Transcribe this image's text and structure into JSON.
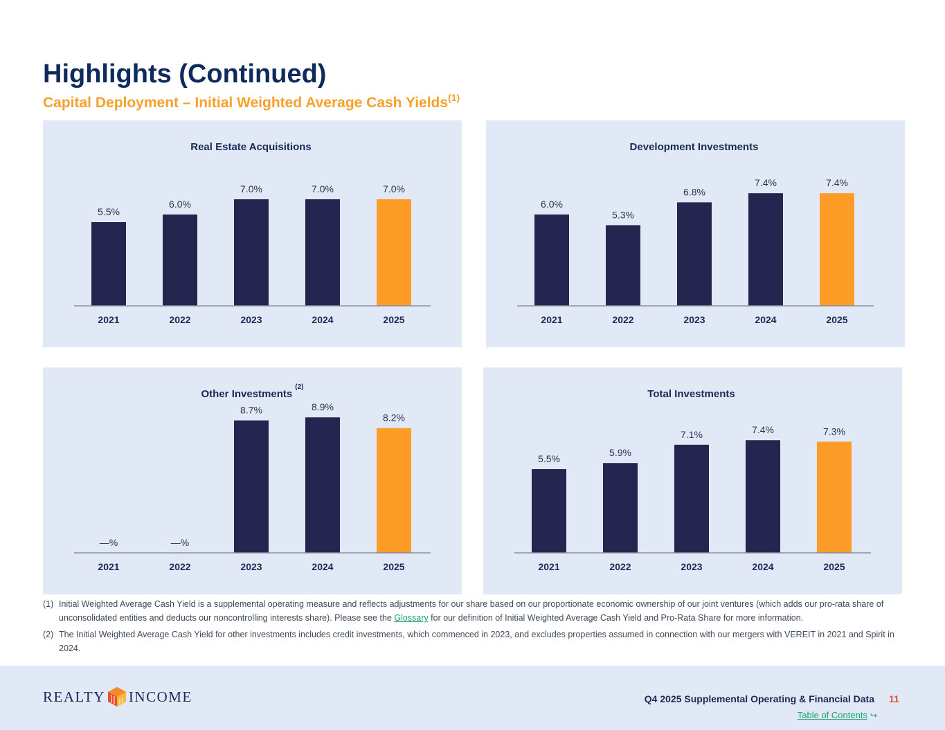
{
  "page": {
    "title": "Highlights (Continued)",
    "subtitle": "Capital Deployment – Initial Weighted Average Cash Yields",
    "subtitle_sup": "(1)"
  },
  "colors": {
    "bar_dark": "#252650",
    "bar_highlight": "#fd9c27",
    "panel_bg": "#e1e8f6",
    "title": "#0f2a5c",
    "subtitle": "#f7a12b"
  },
  "chart_data": [
    {
      "type": "bar",
      "title": "Real Estate Acquisitions",
      "title_sup": "",
      "categories": [
        "2021",
        "2022",
        "2023",
        "2024",
        "2025"
      ],
      "values": [
        5.5,
        6.0,
        7.0,
        7.0,
        7.0
      ],
      "labels": [
        "5.5%",
        "6.0%",
        "7.0%",
        "7.0%",
        "7.0%"
      ],
      "highlight": [
        false,
        false,
        false,
        false,
        true
      ],
      "ylim": [
        0,
        10
      ]
    },
    {
      "type": "bar",
      "title": "Development Investments",
      "title_sup": "",
      "categories": [
        "2021",
        "2022",
        "2023",
        "2024",
        "2025"
      ],
      "values": [
        6.0,
        5.3,
        6.8,
        7.4,
        7.4
      ],
      "labels": [
        "6.0%",
        "5.3%",
        "6.8%",
        "7.4%",
        "7.4%"
      ],
      "highlight": [
        false,
        false,
        false,
        false,
        true
      ],
      "ylim": [
        0,
        10
      ]
    },
    {
      "type": "bar",
      "title": "Other Investments",
      "title_sup": "(2)",
      "categories": [
        "2021",
        "2022",
        "2023",
        "2024",
        "2025"
      ],
      "values": [
        0,
        0,
        8.7,
        8.9,
        8.2
      ],
      "labels": [
        "—%",
        "—%",
        "8.7%",
        "8.9%",
        "8.2%"
      ],
      "highlight": [
        false,
        false,
        false,
        false,
        true
      ],
      "ylim": [
        0,
        10
      ]
    },
    {
      "type": "bar",
      "title": "Total Investments",
      "title_sup": "",
      "categories": [
        "2021",
        "2022",
        "2023",
        "2024",
        "2025"
      ],
      "values": [
        5.5,
        5.9,
        7.1,
        7.4,
        7.3
      ],
      "labels": [
        "5.5%",
        "5.9%",
        "7.1%",
        "7.4%",
        "7.3%"
      ],
      "highlight": [
        false,
        false,
        false,
        false,
        true
      ],
      "ylim": [
        0,
        10
      ]
    }
  ],
  "footnotes": [
    {
      "num": "(1)",
      "text_before": "Initial Weighted Average Cash Yield is a supplemental operating measure and reflects adjustments for our share based on our proportionate economic ownership of our joint ventures (which adds our pro-rata share of unconsolidated entities and deducts our noncontrolling interests share). Please see the ",
      "link": "Glossary",
      "text_after": " for our definition of Initial Weighted Average Cash Yield and Pro-Rata Share for more information."
    },
    {
      "num": "(2)",
      "text_before": "The Initial Weighted Average Cash Yield for other investments includes credit investments, which commenced in 2023, and excludes properties assumed in connection with our mergers with VEREIT in 2021 and Spirit in 2024.",
      "link": "",
      "text_after": ""
    }
  ],
  "footer": {
    "logo_left": "REALTY",
    "logo_right": "INCOME",
    "label": "Q4 2025 Supplemental Operating & Financial Data",
    "page_number": "11",
    "toc_link": "Table of Contents"
  }
}
